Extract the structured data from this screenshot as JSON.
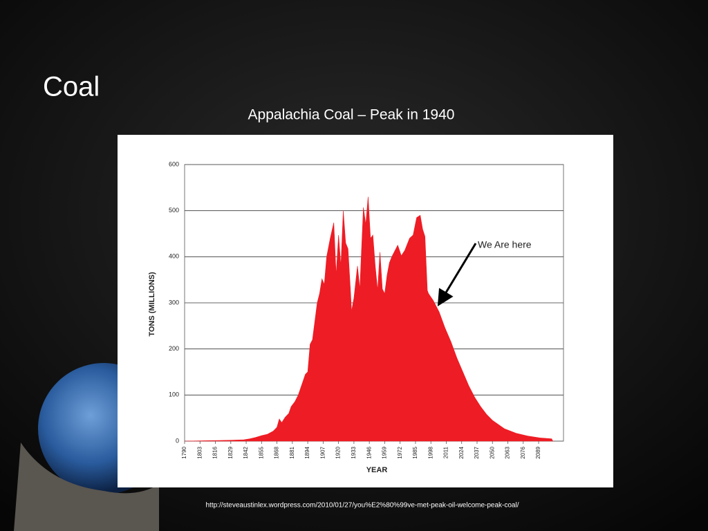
{
  "slide": {
    "title": "Coal",
    "source": "http://steveaustinlex.wordpress.com/2010/01/27/you%E2%80%99ve-met-peak-oil-welcome-peak-coal/"
  },
  "chart_data": {
    "type": "area",
    "title": "Appalachia Coal – Peak in 1940",
    "x_label": "YEAR",
    "y_label": "TONS (MILLIONS)",
    "annotation": "We Are here",
    "color": "#ee1c24",
    "grid": true,
    "xlim": [
      1790,
      2110
    ],
    "ylim": [
      0,
      600
    ],
    "xticks": [
      1790,
      1803,
      1816,
      1829,
      1842,
      1855,
      1868,
      1881,
      1894,
      1907,
      1920,
      1933,
      1946,
      1959,
      1972,
      1985,
      1998,
      2011,
      2024,
      2037,
      2050,
      2063,
      2076,
      2089
    ],
    "yticks": [
      0,
      100,
      200,
      300,
      400,
      500,
      600
    ],
    "x": [
      1790,
      1800,
      1810,
      1820,
      1830,
      1840,
      1845,
      1850,
      1855,
      1860,
      1865,
      1868,
      1870,
      1872,
      1875,
      1878,
      1880,
      1883,
      1886,
      1890,
      1892,
      1894,
      1896,
      1898,
      1900,
      1902,
      1904,
      1906,
      1908,
      1910,
      1913,
      1916,
      1918,
      1920,
      1922,
      1924,
      1926,
      1928,
      1930,
      1931,
      1933,
      1936,
      1938,
      1941,
      1943,
      1945,
      1947,
      1949,
      1951,
      1953,
      1955,
      1957,
      1959,
      1961,
      1963,
      1965,
      1967,
      1970,
      1973,
      1976,
      1980,
      1983,
      1986,
      1989,
      1991,
      1993,
      1995,
      1996,
      2000,
      2005,
      2010,
      2015,
      2020,
      2025,
      2030,
      2035,
      2040,
      2045,
      2050,
      2060,
      2070,
      2080,
      2090,
      2100,
      2101
    ],
    "values": [
      0,
      0.5,
      1,
      1.5,
      2,
      3,
      5,
      8,
      12,
      15,
      22,
      30,
      48,
      40,
      52,
      60,
      75,
      85,
      100,
      130,
      145,
      150,
      210,
      220,
      260,
      300,
      320,
      352,
      340,
      400,
      440,
      474,
      360,
      447,
      380,
      500,
      430,
      417,
      330,
      282,
      310,
      380,
      330,
      507,
      470,
      530,
      440,
      447,
      380,
      327,
      410,
      330,
      320,
      360,
      387,
      400,
      410,
      425,
      402,
      414,
      440,
      447,
      485,
      490,
      460,
      444,
      327,
      320,
      305,
      280,
      245,
      215,
      180,
      150,
      120,
      95,
      75,
      58,
      45,
      27,
      17,
      11,
      7,
      5,
      0
    ]
  }
}
